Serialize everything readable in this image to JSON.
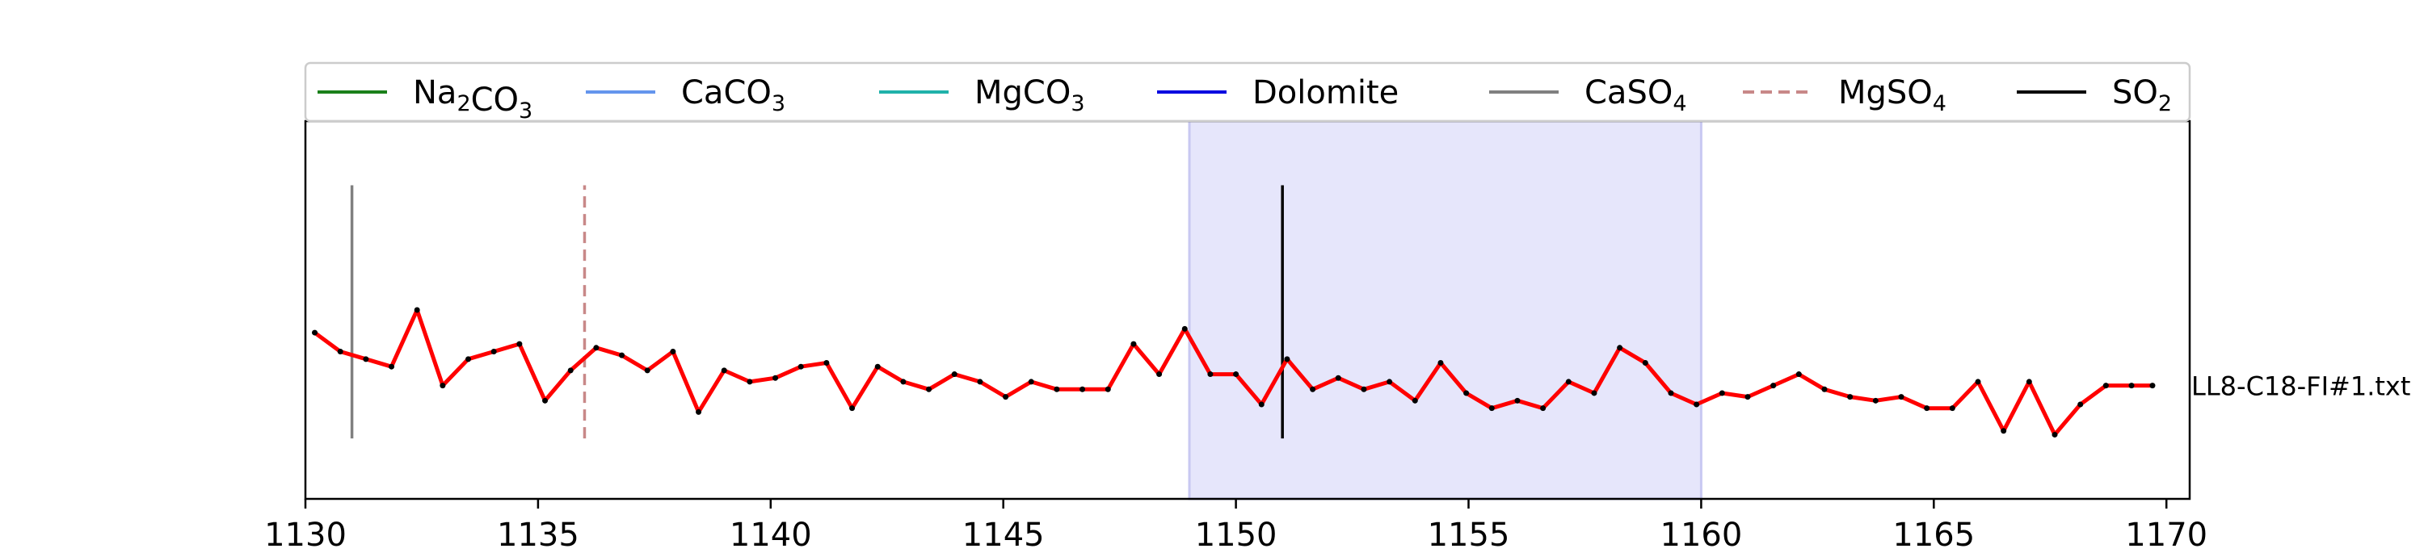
{
  "chart_data": {
    "type": "line",
    "title": "",
    "xlabel": "",
    "ylabel": "",
    "xlim": [
      1130,
      1170.5
    ],
    "ylim": [
      0,
      1
    ],
    "x_ticks": [
      1130,
      1135,
      1140,
      1145,
      1150,
      1155,
      1160,
      1165,
      1170
    ],
    "y_ticks": [],
    "grid": false,
    "legend_position": "top",
    "side_label": "LL8-C18-FI#1.txt",
    "highlight_region": {
      "x": [
        1149,
        1160
      ],
      "color": "#e6e6fb"
    },
    "legend": [
      {
        "id": "na2co3",
        "base": "Na",
        "sub1": "2",
        "mid": "CO",
        "sub2": "3",
        "color": "#1a801a",
        "dash": ""
      },
      {
        "id": "caco3",
        "base": "CaCO",
        "sub1": "3",
        "mid": "",
        "sub2": "",
        "color": "#6495ed",
        "dash": ""
      },
      {
        "id": "mgco3",
        "base": "MgCO",
        "sub1": "3",
        "mid": "",
        "sub2": "",
        "color": "#20b2aa",
        "dash": ""
      },
      {
        "id": "dolomite",
        "base": "Dolomite",
        "sub1": "",
        "mid": "",
        "sub2": "",
        "color": "#0000e0",
        "dash": ""
      },
      {
        "id": "caso4",
        "base": "CaSO",
        "sub1": "4",
        "mid": "",
        "sub2": "",
        "color": "#808080",
        "dash": ""
      },
      {
        "id": "mgso4",
        "base": "MgSO",
        "sub1": "4",
        "mid": "",
        "sub2": "",
        "color": "#c88888",
        "dash": "14,8"
      },
      {
        "id": "so2",
        "base": "SO",
        "sub1": "2",
        "mid": "",
        "sub2": "",
        "color": "#000000",
        "dash": ""
      }
    ],
    "reference_lines": [
      {
        "x": 1131,
        "y": [
          0.16,
          0.83
        ],
        "color": "#808080",
        "dash": ""
      },
      {
        "x": 1136,
        "y": [
          0.16,
          0.83
        ],
        "color": "#c88888",
        "dash": "14,8"
      },
      {
        "x": 1151,
        "y": [
          0.16,
          0.83
        ],
        "color": "#000000",
        "dash": ""
      }
    ],
    "series": [
      {
        "color": "#ff0000",
        "x": [
          1130.2,
          1130.75,
          1131.3,
          1131.85,
          1132.4,
          1132.95,
          1133.5,
          1134.05,
          1134.6,
          1135.15,
          1135.7,
          1136.25,
          1136.8,
          1137.35,
          1137.9,
          1138.45,
          1139.0,
          1139.55,
          1140.1,
          1140.65,
          1141.2,
          1141.75,
          1142.3,
          1142.85,
          1143.4,
          1143.95,
          1144.5,
          1145.05,
          1145.6,
          1146.15,
          1146.7,
          1147.25,
          1147.8,
          1148.35,
          1148.9,
          1149.45,
          1150.0,
          1150.55,
          1151.1,
          1151.65,
          1152.2,
          1152.75,
          1153.3,
          1153.85,
          1154.4,
          1154.95,
          1155.5,
          1156.05,
          1156.6,
          1157.15,
          1157.7,
          1158.25,
          1158.8,
          1159.35,
          1159.9,
          1160.45,
          1161.0,
          1161.55,
          1162.1,
          1162.65,
          1163.2,
          1163.75,
          1164.3,
          1164.85,
          1165.4,
          1165.95,
          1166.5,
          1167.05,
          1167.6,
          1168.15,
          1168.7,
          1169.25,
          1169.7
        ],
        "y": [
          0.44,
          0.39,
          0.37,
          0.35,
          0.5,
          0.3,
          0.37,
          0.39,
          0.41,
          0.26,
          0.34,
          0.4,
          0.38,
          0.34,
          0.39,
          0.23,
          0.34,
          0.31,
          0.32,
          0.35,
          0.36,
          0.24,
          0.35,
          0.31,
          0.29,
          0.33,
          0.31,
          0.27,
          0.31,
          0.29,
          0.29,
          0.29,
          0.41,
          0.33,
          0.45,
          0.33,
          0.33,
          0.25,
          0.37,
          0.29,
          0.32,
          0.29,
          0.31,
          0.26,
          0.36,
          0.28,
          0.24,
          0.26,
          0.24,
          0.31,
          0.28,
          0.4,
          0.36,
          0.28,
          0.25,
          0.28,
          0.27,
          0.3,
          0.33,
          0.29,
          0.27,
          0.26,
          0.27,
          0.24,
          0.24,
          0.31,
          0.18,
          0.31,
          0.17,
          0.25,
          0.3,
          0.3,
          0.3
        ]
      }
    ]
  }
}
